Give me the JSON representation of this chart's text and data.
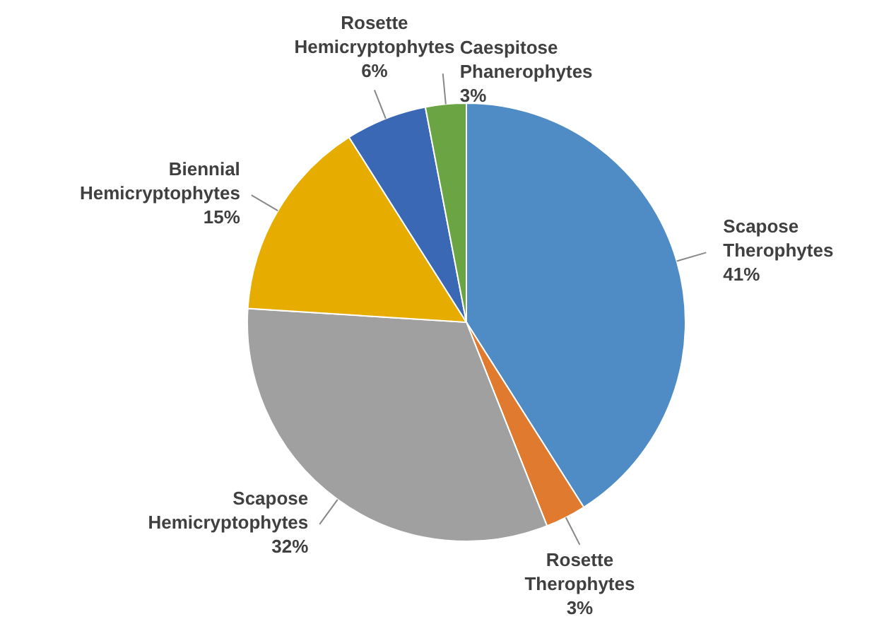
{
  "chart_data": {
    "type": "pie",
    "categories": [
      "Scapose Therophytes",
      "Rosette Therophytes",
      "Scapose Hemicryptophytes",
      "Biennial Hemicryptophytes",
      "Rosette Hemicryptophytes",
      "Caespitose Phanerophytes"
    ],
    "values": [
      41,
      3,
      32,
      15,
      6,
      3
    ],
    "value_labels": [
      "41%",
      "3%",
      "32%",
      "15%",
      "6%",
      "3%"
    ],
    "colors": [
      "#4f8bc4",
      "#e07a2e",
      "#a0a0a0",
      "#e6ac00",
      "#3a68b5",
      "#6aa443"
    ]
  }
}
